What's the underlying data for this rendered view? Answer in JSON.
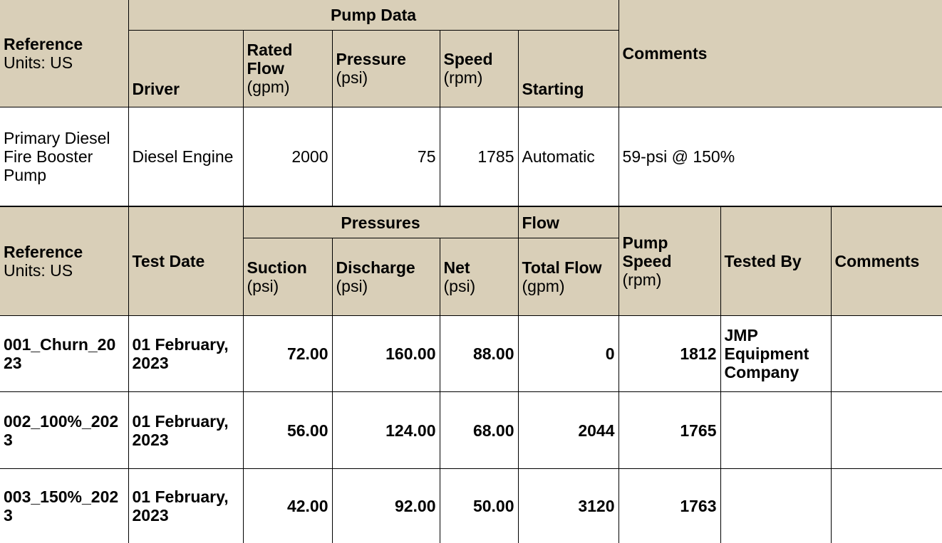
{
  "pump_table": {
    "pump_data_header": "Pump Data",
    "reference_label": "Reference",
    "units_label": "Units: US",
    "driver_header": "Driver",
    "rated_flow_header": "Rated Flow",
    "rated_flow_unit": "(gpm)",
    "pressure_header": "Pressure",
    "pressure_unit": "(psi)",
    "speed_header": "Speed",
    "speed_unit": "(rpm)",
    "starting_header": "Starting",
    "comments_header": "Comments",
    "row": {
      "reference": "Primary Diesel Fire Booster Pump",
      "driver": "Diesel Engine",
      "rated_flow": "2000",
      "pressure": "75",
      "speed": "1785",
      "starting": "Automatic",
      "comments": "59-psi @ 150%"
    }
  },
  "test_table": {
    "reference_label": "Reference",
    "units_label": "Units: US",
    "test_date_header": "Test Date",
    "pressures_header": "Pressures",
    "flow_header": "Flow",
    "suction_header": "Suction",
    "suction_unit": "(psi)",
    "discharge_header": "Discharge",
    "discharge_unit": "(psi)",
    "net_header": "Net",
    "net_unit": "(psi)",
    "total_flow_header": "Total Flow",
    "total_flow_unit": "(gpm)",
    "pump_speed_header": "Pump Speed",
    "pump_speed_unit": "(rpm)",
    "tested_by_header": "Tested By",
    "comments_header": "Comments",
    "rows": [
      {
        "reference": "001_Churn_2023",
        "test_date": "01 February, 2023",
        "suction": "72.00",
        "discharge": "160.00",
        "net": "88.00",
        "total_flow": "0",
        "pump_speed": "1812",
        "tested_by": "JMP Equipment Company",
        "comments": ""
      },
      {
        "reference": "002_100%_2023",
        "test_date": "01 February, 2023",
        "suction": "56.00",
        "discharge": "124.00",
        "net": "68.00",
        "total_flow": "2044",
        "pump_speed": "1765",
        "tested_by": "",
        "comments": ""
      },
      {
        "reference": "003_150%_2023",
        "test_date": "01 February, 2023",
        "suction": "42.00",
        "discharge": "92.00",
        "net": "50.00",
        "total_flow": "3120",
        "pump_speed": "1763",
        "tested_by": "",
        "comments": ""
      }
    ]
  }
}
